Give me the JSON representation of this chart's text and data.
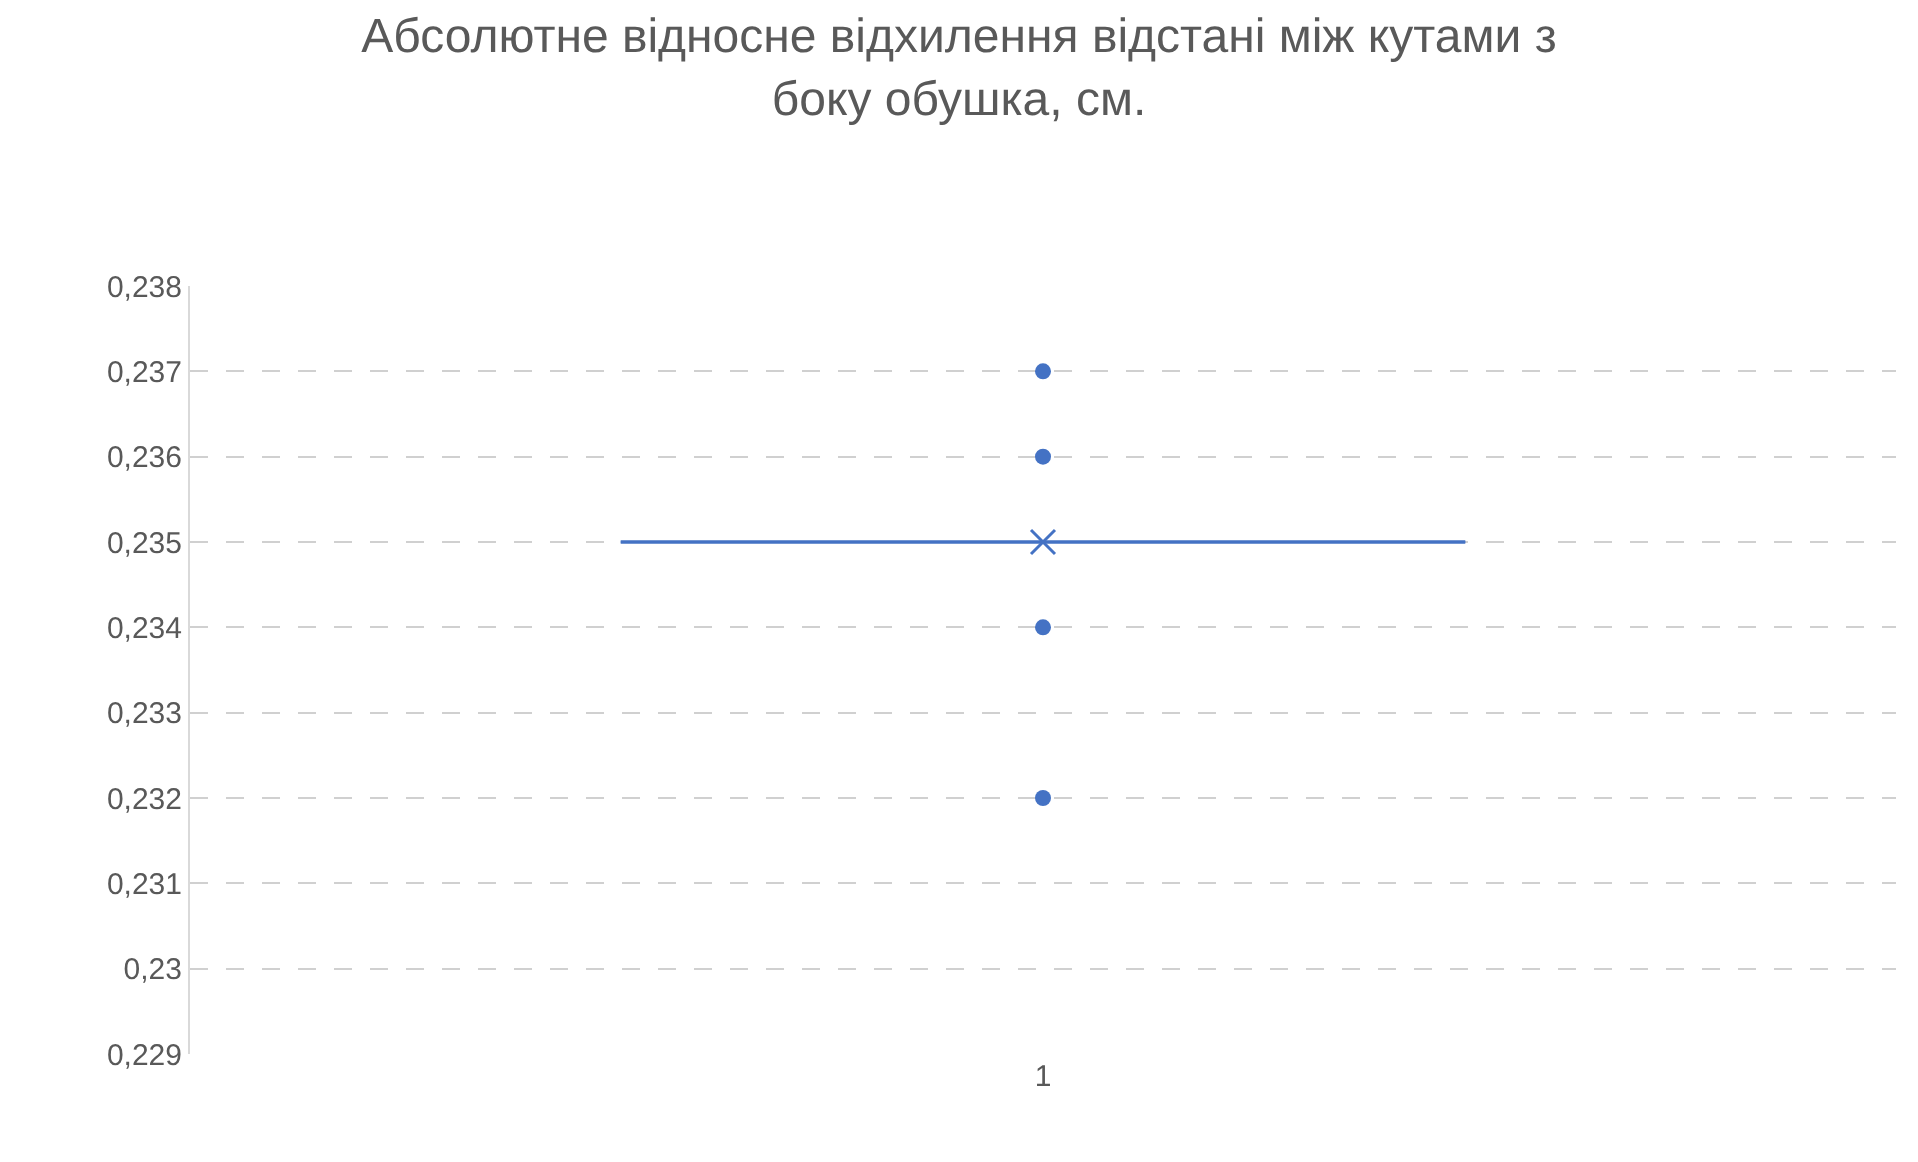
{
  "chart_data": {
    "type": "box",
    "title": "Абсолютне відносне відхилення відстані між кутами з боку обушка, см.",
    "categories": [
      "1"
    ],
    "boxes": [
      {
        "low": 0.235,
        "q1": 0.235,
        "median": 0.235,
        "q3": 0.235,
        "high": 0.235,
        "mean": 0.235,
        "outliers": [
          0.232,
          0.234,
          0.236,
          0.237
        ]
      }
    ],
    "color": "#4472c4",
    "ylim": [
      0.229,
      0.238
    ],
    "yticks": [
      {
        "value": 0.229,
        "label": "0,229"
      },
      {
        "value": 0.23,
        "label": "0,23"
      },
      {
        "value": 0.231,
        "label": "0,231"
      },
      {
        "value": 0.232,
        "label": "0,232"
      },
      {
        "value": 0.233,
        "label": "0,233"
      },
      {
        "value": 0.234,
        "label": "0,234"
      },
      {
        "value": 0.235,
        "label": "0,235"
      },
      {
        "value": 0.236,
        "label": "0,236"
      },
      {
        "value": 0.237,
        "label": "0,237"
      },
      {
        "value": 0.238,
        "label": "0,238"
      }
    ],
    "grid": "y"
  }
}
